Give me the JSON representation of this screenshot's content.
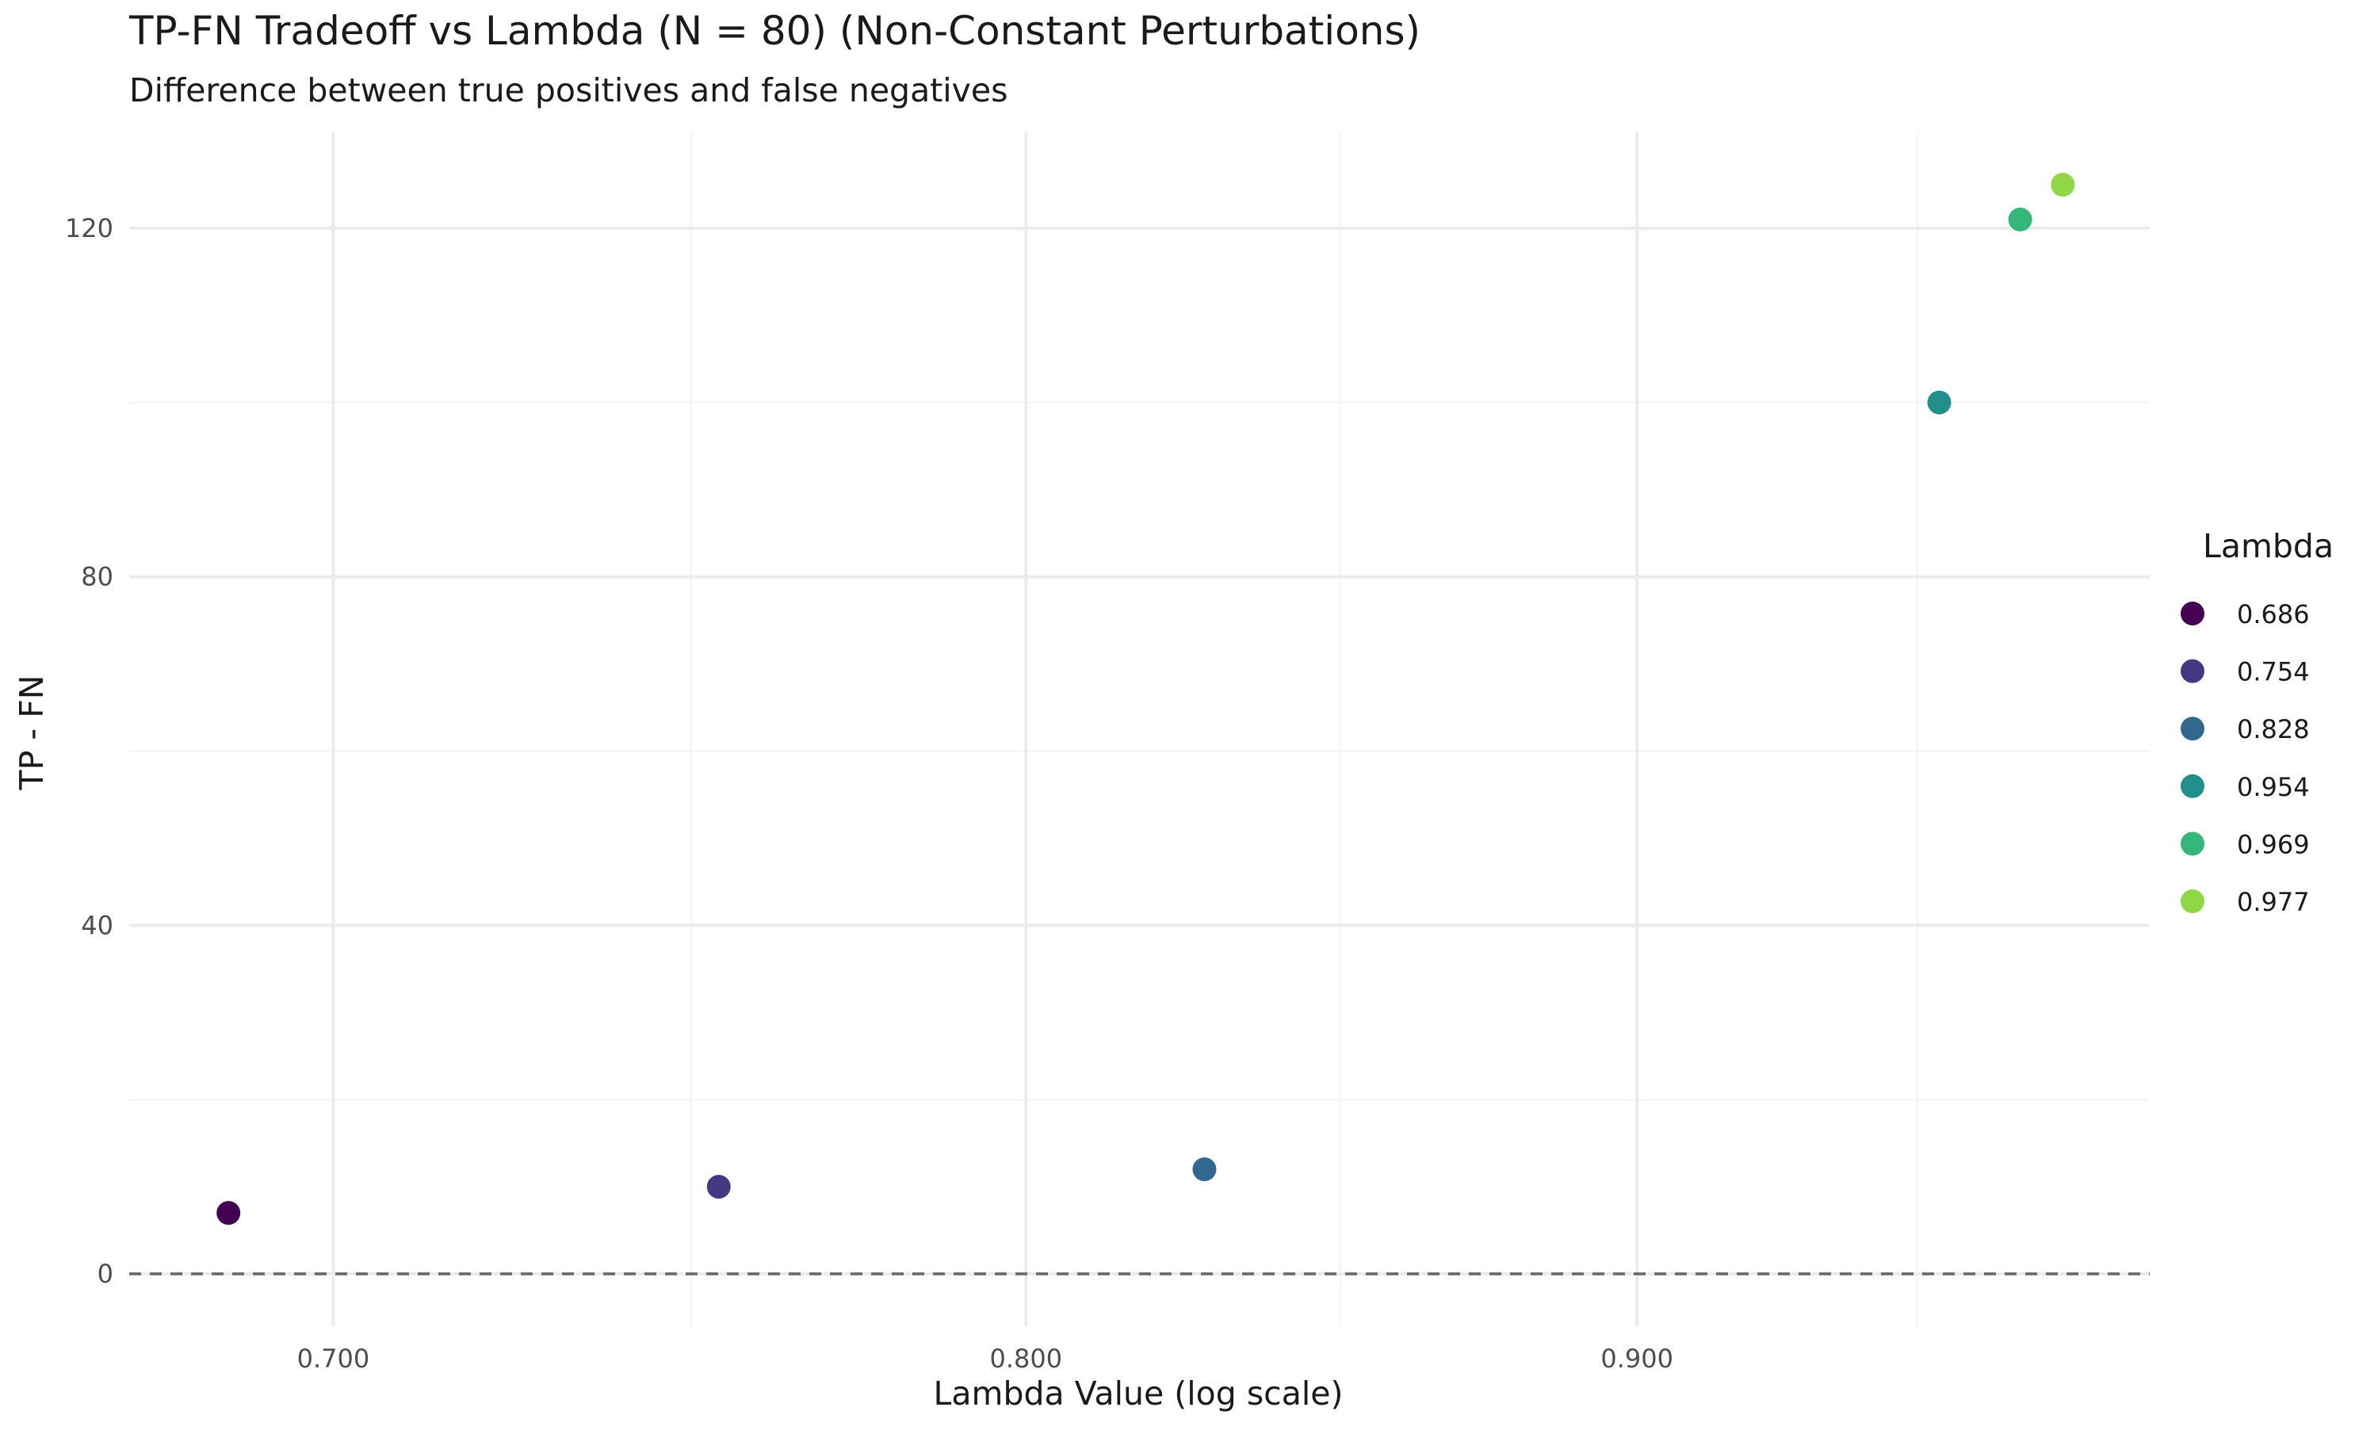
{
  "chart_data": {
    "type": "scatter",
    "title": "TP-FN Tradeoff vs Lambda (N = 80) (Non-Constant Perturbations)",
    "subtitle": "Difference between true positives and false negatives",
    "xlabel": "Lambda Value (log scale)",
    "ylabel": "TP - FN",
    "x_scale": "log",
    "xlim": [
      0.673,
      0.9935
    ],
    "ylim": [
      -6,
      131
    ],
    "x_ticks": [
      {
        "value": 0.7,
        "label": "0.700"
      },
      {
        "value": 0.8,
        "label": "0.800"
      },
      {
        "value": 0.9,
        "label": "0.900"
      }
    ],
    "x_minor_gridlines": [
      0.75,
      0.85,
      0.95
    ],
    "y_ticks": [
      {
        "value": 0,
        "label": "0"
      },
      {
        "value": 40,
        "label": "40"
      },
      {
        "value": 80,
        "label": "80"
      },
      {
        "value": 120,
        "label": "120"
      }
    ],
    "y_minor_gridlines": [
      20,
      60,
      100
    ],
    "grid": true,
    "reference_line": {
      "y": 0,
      "style": "dashed",
      "color": "#666666"
    },
    "legend": {
      "title": "Lambda",
      "position": "right"
    },
    "points": [
      {
        "x": 0.686,
        "y": 7,
        "label": "0.686",
        "color": "#440154"
      },
      {
        "x": 0.754,
        "y": 10,
        "label": "0.754",
        "color": "#443A83"
      },
      {
        "x": 0.828,
        "y": 12,
        "label": "0.828",
        "color": "#31688E"
      },
      {
        "x": 0.954,
        "y": 100,
        "label": "0.954",
        "color": "#21908C"
      },
      {
        "x": 0.969,
        "y": 121,
        "label": "0.969",
        "color": "#35B779"
      },
      {
        "x": 0.977,
        "y": 125,
        "label": "0.977",
        "color": "#8FD744"
      }
    ],
    "colors": {
      "grid_major": "#EBEBEB",
      "grid_minor": "#F3F3F3",
      "tick_text": "#4D4D4D",
      "title_text": "#1A1A1A",
      "axis_title": "#1A1A1A"
    }
  }
}
